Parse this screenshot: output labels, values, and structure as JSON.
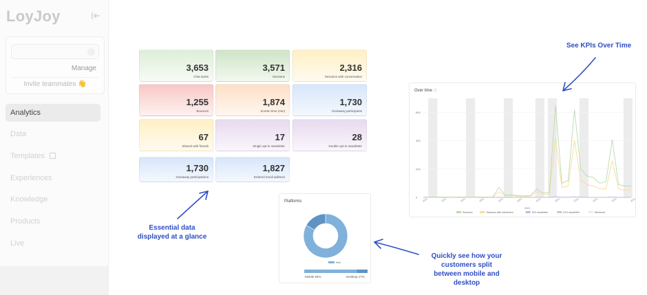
{
  "sidebar": {
    "logo": "LoyJoy",
    "manage_label": "Manage",
    "invite_label": "Invite teammates 👋",
    "nav": [
      {
        "label": "Analytics",
        "active": true
      },
      {
        "label": "Data"
      },
      {
        "label": "Templates"
      },
      {
        "label": "Experiences"
      },
      {
        "label": "Knowledge"
      },
      {
        "label": "Products"
      },
      {
        "label": "Live"
      }
    ]
  },
  "kpis": [
    {
      "value": "3,653",
      "label": "Chat starts"
    },
    {
      "value": "3,571",
      "label": "Sessions"
    },
    {
      "value": "2,316",
      "label": "Sessions with conversation"
    },
    {
      "value": "1,255",
      "label": "Bounces"
    },
    {
      "value": "1,874",
      "label": "Screen time (min)"
    },
    {
      "value": "1,730",
      "label": "Giveaway participants"
    },
    {
      "value": "67",
      "label": "Shared with friends"
    },
    {
      "value": "17",
      "label": "Single opt-in newsletter"
    },
    {
      "value": "28",
      "label": "Double opt-in newsletter"
    },
    {
      "value": "1,730",
      "label": "Giveaway participations"
    },
    {
      "value": "1,827",
      "label": "Entered email address"
    }
  ],
  "over_time": {
    "title": "Over time",
    "x_axis_label": "2021",
    "legend": [
      "Sessions",
      "Sessions with interaction",
      "SOI newsletter",
      "DOI newsletter",
      "Weekend"
    ]
  },
  "platforms": {
    "title": "Platforms",
    "legend": "Web",
    "mobile_label": "Mobile 83%",
    "desktop_label": "Desktop 17%"
  },
  "annotations": {
    "kpis_over_time": "See KPIs Over Time",
    "essential_line1": "Essential data",
    "essential_line2": "displayed at a glance",
    "platforms_line1": "Quickly see how your",
    "platforms_line2": "customers split",
    "platforms_line3": "between mobile and",
    "platforms_line4": "desktop"
  },
  "chart_data": {
    "type": "line",
    "title": "Over time",
    "xlabel": "2021",
    "ylabel": "",
    "ylim": [
      0,
      700
    ],
    "yticks": [
      0,
      200,
      400,
      600,
      700
    ],
    "series": [
      {
        "name": "Sessions",
        "color": "#b9dcae",
        "values": [
          3,
          2,
          2,
          3,
          2,
          2,
          3,
          2,
          2,
          3,
          3,
          2,
          70,
          15,
          20,
          12,
          10,
          12,
          60,
          30,
          35,
          650,
          100,
          120,
          620,
          200,
          150,
          140,
          100,
          110,
          410,
          90,
          80,
          80
        ]
      },
      {
        "name": "Sessions with interaction",
        "color": "#f8dc96",
        "values": [
          2,
          1,
          1,
          2,
          1,
          1,
          2,
          1,
          1,
          2,
          2,
          1,
          40,
          10,
          12,
          8,
          6,
          8,
          40,
          20,
          20,
          420,
          70,
          80,
          400,
          120,
          90,
          80,
          60,
          60,
          260,
          60,
          50,
          50
        ]
      },
      {
        "name": "SOI newsletter",
        "color": "#c7b5e6",
        "values": [
          0,
          0,
          0,
          0,
          0,
          0,
          0,
          0,
          0,
          0,
          0,
          0,
          1,
          0,
          0,
          0,
          0,
          0,
          1,
          0,
          0,
          3,
          1,
          1,
          3,
          1,
          0,
          0,
          0,
          0,
          2,
          0,
          0,
          0
        ]
      },
      {
        "name": "DOI newsletter",
        "color": "#e0b6e3",
        "values": [
          0,
          0,
          0,
          0,
          0,
          0,
          0,
          0,
          0,
          0,
          0,
          0,
          1,
          0,
          0,
          0,
          0,
          0,
          1,
          0,
          0,
          4,
          1,
          1,
          4,
          1,
          0,
          0,
          0,
          0,
          2,
          0,
          0,
          0
        ]
      }
    ],
    "weekend_color": "#ececec",
    "weekends": [
      [
        1,
        2
      ],
      [
        7,
        8
      ],
      [
        13,
        14
      ],
      [
        18,
        19
      ],
      [
        20,
        21
      ],
      [
        25,
        26
      ],
      [
        32,
        33
      ]
    ],
    "x_ticks": [
      "2021",
      "2021",
      "2021",
      "2021",
      "2021",
      "2021",
      "2021",
      "2021",
      "2021",
      "2021",
      "2021",
      "2021"
    ]
  },
  "platform_chart": {
    "type": "pie",
    "slices": [
      {
        "name": "Mobile",
        "value": 83,
        "color": "#7fb1da"
      },
      {
        "name": "Desktop",
        "value": 17,
        "color": "#5f93c4"
      }
    ]
  },
  "colors": {
    "annotation": "#2f4ec4"
  }
}
